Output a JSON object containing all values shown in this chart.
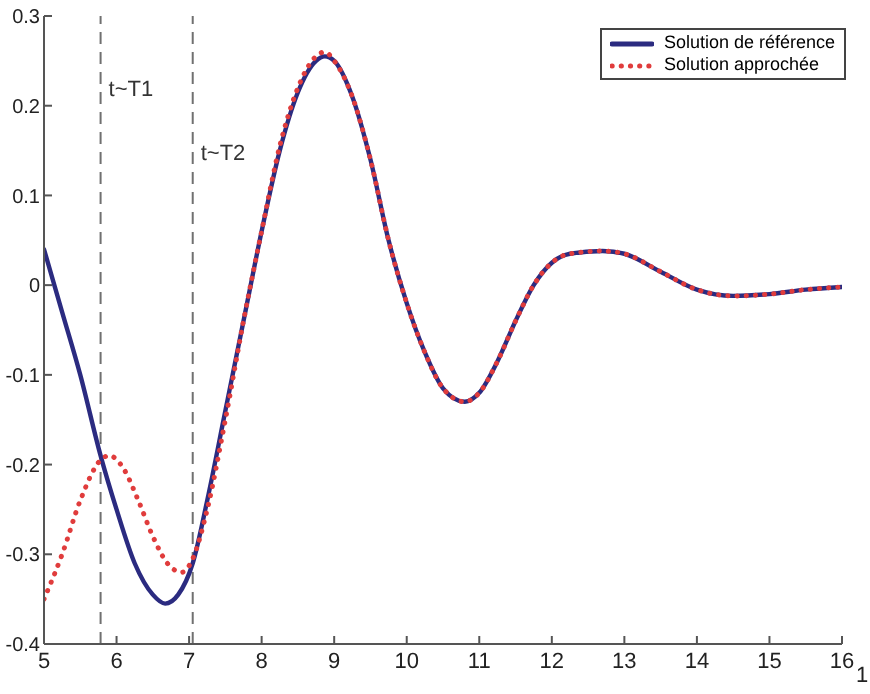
{
  "chart_data": {
    "type": "line",
    "xlim": [
      5,
      16
    ],
    "xticks": [
      5,
      6,
      7,
      8,
      9,
      10,
      11,
      12,
      13,
      14,
      15,
      16
    ],
    "ylim": [
      -0.4,
      0.3
    ],
    "yticks": [
      -0.4,
      -0.3,
      -0.2,
      -0.1,
      0,
      0.1,
      0.2,
      0.3
    ],
    "grid": false,
    "legend": "top right",
    "xlabel": "1",
    "marker": "none",
    "series": [
      {
        "name": "Solution de référence",
        "color": "#2b2b80",
        "line_style": "solid",
        "x": [
          5,
          5.25,
          5.5,
          5.78,
          6,
          6.25,
          6.5,
          6.67,
          6.85,
          7.05,
          7.25,
          7.5,
          7.75,
          8,
          8.25,
          8.5,
          8.75,
          8.87,
          9,
          9.25,
          9.5,
          9.75,
          10,
          10.25,
          10.5,
          10.8,
          11,
          11.25,
          11.5,
          11.75,
          12,
          12.25,
          12.7,
          13,
          13.5,
          14,
          14.5,
          15,
          15.5,
          16
        ],
        "values": [
          0.04,
          -0.03,
          -0.1,
          -0.19,
          -0.25,
          -0.31,
          -0.345,
          -0.355,
          -0.345,
          -0.31,
          -0.24,
          -0.14,
          -0.04,
          0.06,
          0.15,
          0.215,
          0.25,
          0.255,
          0.25,
          0.21,
          0.14,
          0.05,
          -0.02,
          -0.075,
          -0.115,
          -0.13,
          -0.12,
          -0.085,
          -0.04,
          0,
          0.025,
          0.035,
          0.038,
          0.035,
          0.015,
          -0.005,
          -0.012,
          -0.01,
          -0.005,
          -0.002
        ]
      },
      {
        "name": "Solution approchée",
        "color": "#e03c3c",
        "line_style": "dotted",
        "x": [
          5,
          5.25,
          5.5,
          5.78,
          5.9,
          6.1,
          6.3,
          6.5,
          6.7,
          6.9,
          7.05,
          7.25,
          7.5,
          7.75,
          8,
          8.25,
          8.5,
          8.75,
          8.87,
          9,
          9.25,
          9.5,
          9.75,
          10,
          10.25,
          10.5,
          10.8,
          11,
          11.25,
          11.5,
          11.75,
          12,
          12.25,
          12.7,
          13,
          13.5,
          14,
          14.5,
          15,
          15.5,
          16
        ],
        "values": [
          -0.35,
          -0.3,
          -0.24,
          -0.195,
          -0.19,
          -0.205,
          -0.24,
          -0.28,
          -0.31,
          -0.32,
          -0.305,
          -0.25,
          -0.15,
          -0.04,
          0.06,
          0.155,
          0.22,
          0.255,
          0.26,
          0.25,
          0.21,
          0.14,
          0.05,
          -0.02,
          -0.075,
          -0.115,
          -0.13,
          -0.12,
          -0.085,
          -0.04,
          0,
          0.025,
          0.035,
          0.038,
          0.035,
          0.015,
          -0.005,
          -0.012,
          -0.01,
          -0.005,
          -0.002
        ]
      }
    ],
    "ref_lines": [
      {
        "axis": "x",
        "value": 5.78,
        "label": "t~T1",
        "color": "#707070",
        "line_style": "dashed"
      },
      {
        "axis": "x",
        "value": 7.05,
        "label": "t~T2",
        "color": "#707070",
        "line_style": "dashed"
      }
    ]
  }
}
